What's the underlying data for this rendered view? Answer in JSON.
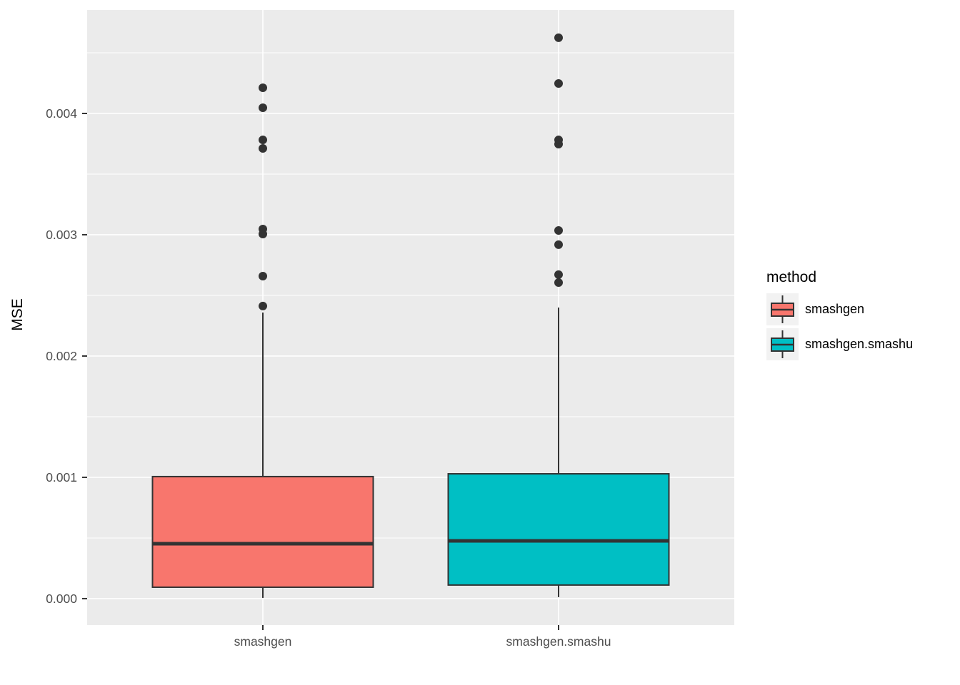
{
  "chart_data": {
    "type": "boxplot",
    "title": "",
    "xlabel": "",
    "ylabel": "MSE",
    "categories": [
      "smashgen",
      "smashgen.smashu"
    ],
    "legend": {
      "title": "method",
      "position": "right"
    },
    "y_ticks": {
      "values": [
        0.0,
        0.001,
        0.002,
        0.003,
        0.004
      ],
      "labels": [
        "0.000",
        "0.001",
        "0.002",
        "0.003",
        "0.004"
      ]
    },
    "y_minor": [
      0.0005,
      0.0015,
      0.0025,
      0.0035,
      0.0045
    ],
    "ylim": [
      -0.000218,
      0.004853
    ],
    "grid": {
      "horizontal_major": true,
      "horizontal_minor": true,
      "vertical_major": true,
      "vertical_minor": false
    },
    "series": [
      {
        "name": "smashgen",
        "color": "#F8766D",
        "stats": {
          "lower_whisker": 6e-06,
          "q1": 9.4e-05,
          "median": 0.000453,
          "q3": 0.001006,
          "upper_whisker": 0.002359
        },
        "outliers": [
          0.002412,
          0.002659,
          0.003006,
          0.003047,
          0.003712,
          0.003782,
          0.004047,
          0.004212
        ]
      },
      {
        "name": "smashgen.smashu",
        "color": "#00BFC4",
        "stats": {
          "lower_whisker": 1.2e-05,
          "q1": 0.000112,
          "median": 0.000476,
          "q3": 0.001029,
          "upper_whisker": 0.0024
        },
        "outliers": [
          0.002606,
          0.002671,
          0.002918,
          0.003035,
          0.003747,
          0.003782,
          0.004247,
          0.004624
        ]
      }
    ],
    "colors": {
      "panel_bg": "#EBEBEB",
      "grid": "#FFFFFF",
      "box_stroke": "#333333",
      "outlier": "#333333",
      "tick_mark": "#333333",
      "axis_text": "#4D4D4D",
      "title_text": "#000000",
      "legend_key_bg": "#F2F2F2"
    }
  }
}
